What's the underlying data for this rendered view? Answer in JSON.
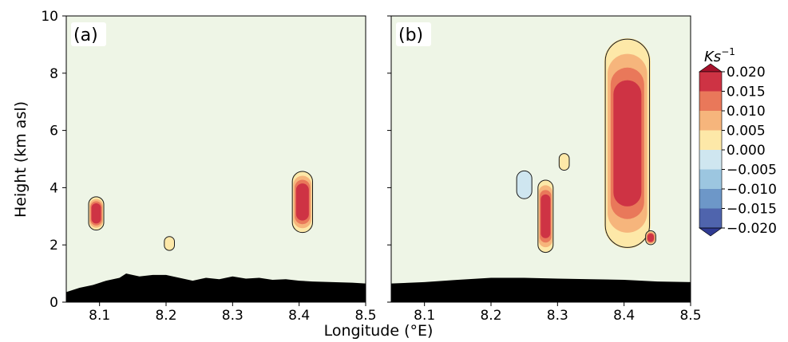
{
  "chart_data": [
    {
      "type": "heatmap",
      "panel_label": "(a)",
      "ylabel": "Height (km asl)",
      "xlim": [
        8.05,
        8.5
      ],
      "ylim": [
        0,
        10
      ],
      "xticks": [
        8.1,
        8.2,
        8.3,
        8.4,
        8.5
      ],
      "yticks": [
        0,
        2,
        4,
        6,
        8,
        10
      ],
      "background_color": "#eef5e6",
      "cells": [
        {
          "name": "cell-8.1",
          "x_center": 8.095,
          "half_width": 0.012,
          "y_bottom": 2.5,
          "y_top": 3.7,
          "core_value": 0.02
        },
        {
          "name": "cell-8.2",
          "x_center": 8.205,
          "half_width": 0.008,
          "y_bottom": 1.8,
          "y_top": 2.3,
          "core_value": 0.0
        },
        {
          "name": "cell-8.4",
          "x_center": 8.405,
          "half_width": 0.016,
          "y_bottom": 2.4,
          "y_top": 4.6,
          "core_value": 0.02
        }
      ],
      "terrain": [
        [
          8.05,
          0.35
        ],
        [
          8.07,
          0.5
        ],
        [
          8.09,
          0.6
        ],
        [
          8.11,
          0.75
        ],
        [
          8.13,
          0.85
        ],
        [
          8.14,
          1.0
        ],
        [
          8.16,
          0.9
        ],
        [
          8.18,
          0.95
        ],
        [
          8.2,
          0.95
        ],
        [
          8.22,
          0.85
        ],
        [
          8.24,
          0.75
        ],
        [
          8.26,
          0.85
        ],
        [
          8.28,
          0.8
        ],
        [
          8.3,
          0.9
        ],
        [
          8.32,
          0.82
        ],
        [
          8.34,
          0.85
        ],
        [
          8.36,
          0.78
        ],
        [
          8.38,
          0.8
        ],
        [
          8.4,
          0.75
        ],
        [
          8.42,
          0.72
        ],
        [
          8.45,
          0.7
        ],
        [
          8.48,
          0.68
        ],
        [
          8.5,
          0.65
        ]
      ]
    },
    {
      "type": "heatmap",
      "panel_label": "(b)",
      "xlim": [
        8.05,
        8.5
      ],
      "ylim": [
        0,
        10
      ],
      "xticks": [
        8.1,
        8.2,
        8.3,
        8.4,
        8.5
      ],
      "yticks": [
        0,
        2,
        4,
        6,
        8,
        10
      ],
      "background_color": "#eef5e6",
      "cells": [
        {
          "name": "cell-8.28",
          "x_center": 8.282,
          "half_width": 0.012,
          "y_bottom": 1.7,
          "y_top": 4.3,
          "core_value": 0.02
        },
        {
          "name": "cell-8.40-main",
          "x_center": 8.405,
          "half_width": 0.035,
          "y_bottom": 1.8,
          "y_top": 9.3,
          "core_value": 0.02
        },
        {
          "name": "cell-8.44",
          "x_center": 8.44,
          "half_width": 0.008,
          "y_bottom": 2.0,
          "y_top": 2.5,
          "core_value": 0.015
        },
        {
          "name": "cell-8.25",
          "x_center": 8.25,
          "half_width": 0.012,
          "y_bottom": 3.6,
          "y_top": 4.6,
          "core_value": -0.005
        },
        {
          "name": "cell-8.31",
          "x_center": 8.31,
          "half_width": 0.008,
          "y_bottom": 4.6,
          "y_top": 5.2,
          "core_value": 0.0
        }
      ],
      "terrain": [
        [
          8.05,
          0.65
        ],
        [
          8.1,
          0.7
        ],
        [
          8.15,
          0.78
        ],
        [
          8.2,
          0.85
        ],
        [
          8.25,
          0.85
        ],
        [
          8.3,
          0.82
        ],
        [
          8.35,
          0.8
        ],
        [
          8.4,
          0.78
        ],
        [
          8.45,
          0.72
        ],
        [
          8.5,
          0.7
        ]
      ]
    }
  ],
  "xlabel": "Longitude (°E)",
  "colorbar": {
    "title": "Ks",
    "title_superscript": "−1",
    "labels": [
      "0.020",
      "0.015",
      "0.010",
      "0.005",
      "0.000",
      "−0.005",
      "−0.010",
      "−0.015",
      "−0.020"
    ],
    "colors_top_to_bottom": [
      "#ce3344",
      "#e9785a",
      "#f6b57c",
      "#fde8a8",
      "#eef5e6",
      "#cfe6f0",
      "#9cc6e0",
      "#6d97c8",
      "#4f64ad"
    ],
    "extend_max_color": "#a5112b",
    "extend_min_color": "#2f3a92"
  }
}
